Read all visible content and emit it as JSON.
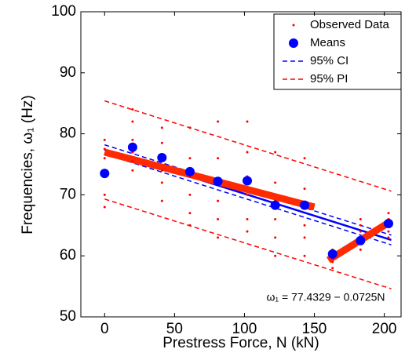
{
  "chart_data": {
    "type": "scatter",
    "xlabel": "Prestress Force, N (kN)",
    "ylabel": "Frequencies, ω₁ (Hz)",
    "annotation": "ω₁ = 77.4329 − 0.0725N",
    "xlim": [
      -17,
      212
    ],
    "ylim": [
      50,
      100
    ],
    "xticks": [
      0,
      50,
      100,
      150,
      200
    ],
    "yticks": [
      50,
      60,
      70,
      80,
      90,
      100
    ],
    "series": [
      {
        "name": "Observed Data",
        "kind": "points",
        "color": "#ff0000",
        "x": [
          0,
          0,
          0,
          0,
          0,
          0,
          20,
          20,
          20,
          20,
          20,
          20,
          41,
          41,
          41,
          41,
          41,
          41,
          61,
          61,
          61,
          61,
          61,
          61,
          81,
          81,
          81,
          81,
          81,
          81,
          102,
          102,
          102,
          102,
          102,
          102,
          122,
          122,
          122,
          122,
          122,
          122,
          143,
          143,
          143,
          143,
          143,
          143,
          163,
          163,
          163,
          163,
          163,
          163,
          183,
          183,
          183,
          183,
          183,
          183,
          203,
          203,
          203,
          203,
          203,
          203
        ],
        "y": [
          68,
          70,
          74,
          76,
          77.5,
          79,
          74,
          75.5,
          77,
          79,
          82,
          84,
          69,
          72,
          74,
          76,
          78.5,
          81,
          65,
          67,
          70,
          73,
          76,
          81,
          63,
          66,
          69,
          72,
          76,
          82,
          64,
          66,
          70,
          73,
          77,
          82,
          60,
          63,
          66,
          69,
          72,
          77,
          60,
          63,
          65,
          68,
          71,
          76,
          58,
          59,
          59.5,
          60,
          60.5,
          61,
          61,
          62,
          63,
          64,
          65,
          66,
          63,
          64,
          65,
          65.5,
          66,
          67
        ]
      },
      {
        "name": "Means",
        "kind": "markers",
        "color": "#0000ff",
        "x": [
          0,
          20,
          41,
          61,
          81,
          102,
          122,
          143,
          163,
          183,
          203
        ],
        "y": [
          73.5,
          77.8,
          76.1,
          73.8,
          72.2,
          72.3,
          68.3,
          68.3,
          60.3,
          62.5,
          65.3
        ]
      },
      {
        "name": "95% CI",
        "kind": "dashed",
        "color": "#0000ff",
        "lines": [
          {
            "x": [
              0,
              205
            ],
            "y": [
              78.2,
              63.4
            ]
          },
          {
            "x": [
              0,
              205
            ],
            "y": [
              76.7,
              61.8
            ]
          }
        ]
      },
      {
        "name": "95% PI",
        "kind": "dashed",
        "color": "#ff0000",
        "lines": [
          {
            "x": [
              0,
              205
            ],
            "y": [
              85.4,
              70.6
            ]
          },
          {
            "x": [
              0,
              205
            ],
            "y": [
              69.3,
              54.6
            ]
          }
        ]
      }
    ],
    "lines": [
      {
        "color": "#0000ff",
        "width": 2.5,
        "x": [
          0,
          205
        ],
        "y": [
          77.4,
          62.6
        ]
      },
      {
        "color": "#ff2a00",
        "width": 9,
        "x": [
          0,
          150
        ],
        "y": [
          77,
          68
        ]
      },
      {
        "color": "#ff2a00",
        "width": 9,
        "x": [
          160,
          205
        ],
        "y": [
          59.3,
          65.7
        ]
      }
    ]
  }
}
